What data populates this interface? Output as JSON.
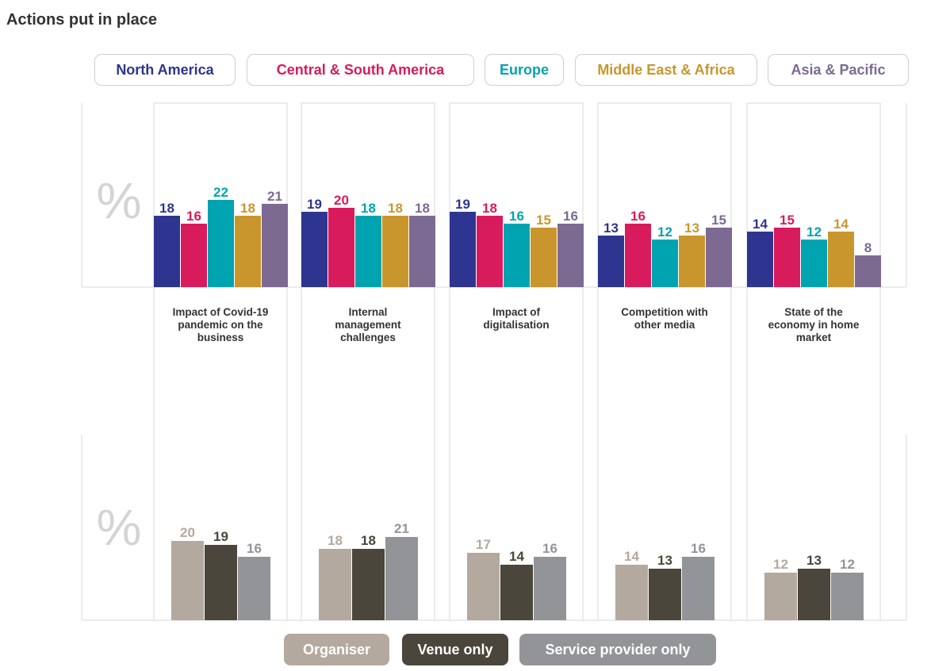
{
  "page_title": "Actions put in place",
  "percent_symbol": "%",
  "region_legend": [
    {
      "label": "North America",
      "color": "#2e3590"
    },
    {
      "label": "Central & South America",
      "color": "#d81b5c"
    },
    {
      "label": "Europe",
      "color": "#00a4b0"
    },
    {
      "label": "Middle East & Africa",
      "color": "#c9962d"
    },
    {
      "label": "Asia & Pacific",
      "color": "#7c6a92"
    }
  ],
  "type_legend": [
    {
      "label": "Organiser",
      "color": "#b3a99f"
    },
    {
      "label": "Venue only",
      "color": "#4a463b"
    },
    {
      "label": "Service provider only",
      "color": "#929497"
    }
  ],
  "chart_data": [
    {
      "type": "bar",
      "title": "Actions put in place",
      "ylabel": "%",
      "categories": [
        "Impact of Covid-19 pandemic on the business",
        "Internal management challenges",
        "Impact of digitalisation",
        "Competition with other media",
        "State of the economy in home market"
      ],
      "category_labels": [
        "Impact of Covid-19\npandemic on the\nbusiness",
        "Internal\nmanagement\nchallenges",
        "Impact of\ndigitalisation",
        "Competition with\nother media",
        "State of the\neconomy in home\nmarket"
      ],
      "series": [
        {
          "name": "North America",
          "color": "#2e3590",
          "values": [
            18,
            19,
            19,
            13,
            14
          ]
        },
        {
          "name": "Central & South America",
          "color": "#d81b5c",
          "values": [
            16,
            20,
            18,
            16,
            15
          ]
        },
        {
          "name": "Europe",
          "color": "#00a4b0",
          "values": [
            22,
            18,
            16,
            12,
            12
          ]
        },
        {
          "name": "Middle East & Africa",
          "color": "#c9962d",
          "values": [
            18,
            18,
            15,
            13,
            14
          ]
        },
        {
          "name": "Asia & Pacific",
          "color": "#7c6a92",
          "values": [
            21,
            18,
            16,
            15,
            8
          ]
        }
      ],
      "ylim": [
        0,
        22
      ]
    },
    {
      "type": "bar",
      "ylabel": "%",
      "categories": [
        "Impact of Covid-19 pandemic on the business",
        "Internal management challenges",
        "Impact of digitalisation",
        "Competition with other media",
        "State of the economy in home market"
      ],
      "series": [
        {
          "name": "Organiser",
          "color": "#b3a99f",
          "values": [
            20,
            18,
            17,
            14,
            12
          ]
        },
        {
          "name": "Venue only",
          "color": "#4a463b",
          "values": [
            19,
            18,
            14,
            13,
            13
          ]
        },
        {
          "name": "Service provider only",
          "color": "#929497",
          "values": [
            16,
            21,
            16,
            16,
            12
          ]
        }
      ],
      "ylim": [
        0,
        21
      ]
    }
  ]
}
